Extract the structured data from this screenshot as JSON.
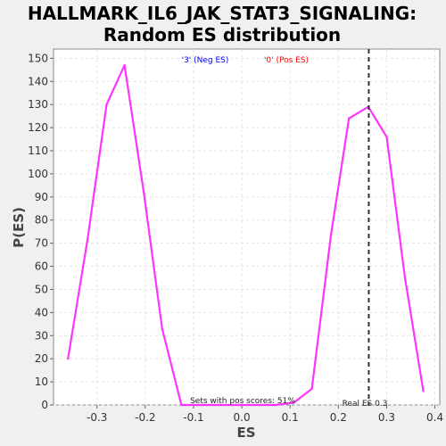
{
  "chart_data": {
    "type": "line",
    "title": "HALLMARK_IL6_JAK_STAT3_SIGNALING:",
    "subtitle": "Random ES distribution",
    "xlabel": "ES",
    "ylabel": "P(ES)",
    "xlim": [
      -0.39,
      0.41
    ],
    "ylim": [
      0,
      154
    ],
    "x_ticks": [
      -0.3,
      -0.2,
      -0.1,
      0.0,
      0.1,
      0.2,
      0.3,
      0.4
    ],
    "x_tick_labels": [
      "-0.3",
      "-0.2",
      "-0.1",
      "0.0",
      "0.1",
      "0.2",
      "0.3",
      "0.4"
    ],
    "y_ticks": [
      0,
      10,
      20,
      30,
      40,
      50,
      60,
      70,
      80,
      90,
      100,
      110,
      120,
      130,
      140,
      150
    ],
    "y_tick_labels": [
      "0",
      "10",
      "20",
      "30",
      "40",
      "50",
      "60",
      "70",
      "80",
      "90",
      "100",
      "110",
      "120",
      "130",
      "140",
      "150"
    ],
    "grid": true,
    "series": [
      {
        "color": "#ff33ff",
        "x": [
          -0.36,
          -0.32,
          -0.28,
          -0.243,
          -0.203,
          -0.165,
          -0.125,
          -0.08,
          -0.045,
          0.0,
          0.04,
          0.07,
          0.108,
          0.145,
          0.185,
          0.222,
          0.262,
          0.3,
          0.338,
          0.376
        ],
        "y": [
          20,
          71,
          130,
          147,
          92,
          33,
          0,
          0,
          0,
          0,
          0,
          0,
          1,
          7,
          74,
          124,
          129,
          116,
          55,
          6
        ]
      }
    ],
    "real_es": 0.263,
    "legend": {
      "neg_label": "'3' (Neg ES)",
      "pos_label": "'0' (Pos ES)",
      "neg_color": "#0000ff",
      "pos_color": "#ff0000"
    },
    "annotations": {
      "pos_scores": "Sets with pos scores: 51%",
      "real_es": "Real ES 0.3"
    }
  }
}
